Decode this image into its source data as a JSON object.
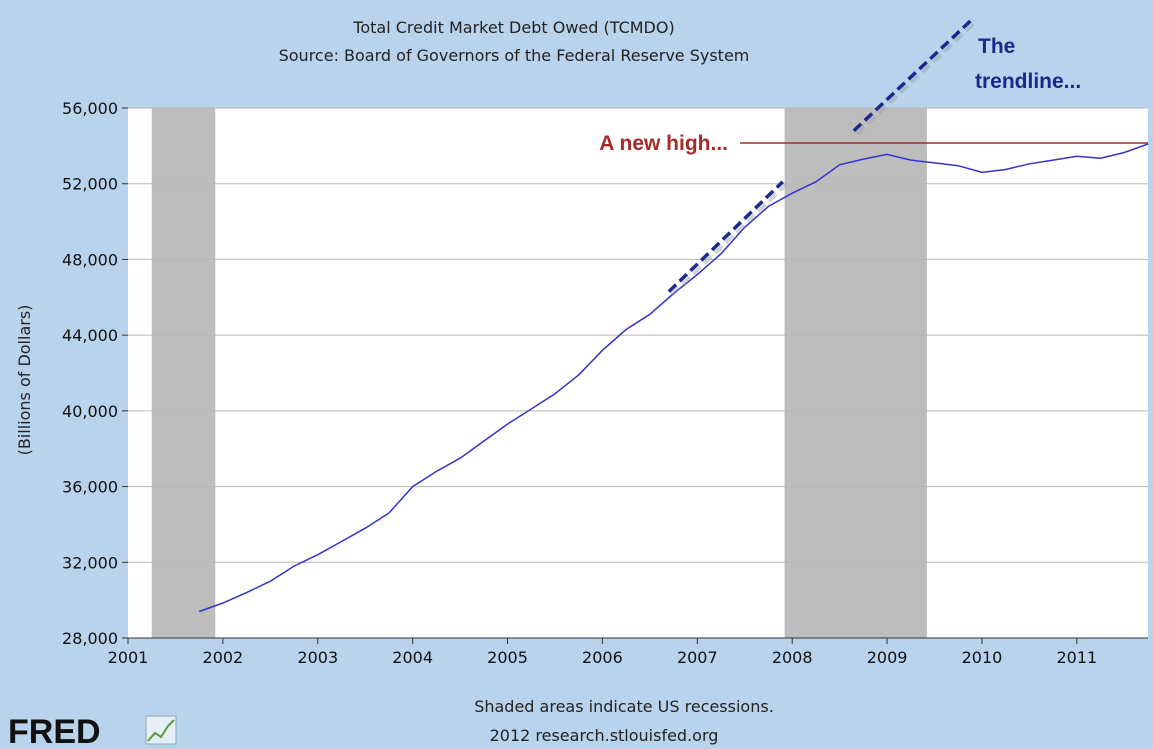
{
  "chart_data": {
    "type": "line",
    "title": "Total Credit Market Debt Owed (TCMDO)",
    "subtitle": "Source: Board of Governors of the Federal Reserve System",
    "ylabel": "(Billions of Dollars)",
    "xlabel": "",
    "xlim": [
      2001,
      2011.75
    ],
    "ylim": [
      28000,
      56000
    ],
    "x_ticks": [
      "2001",
      "2002",
      "2003",
      "2004",
      "2005",
      "2006",
      "2007",
      "2008",
      "2009",
      "2010",
      "2011"
    ],
    "y_ticks": [
      "28,000",
      "32,000",
      "36,000",
      "40,000",
      "44,000",
      "48,000",
      "52,000",
      "56,000"
    ],
    "grid": true,
    "recessions": [
      {
        "start": 2001.25,
        "end": 2001.92
      },
      {
        "start": 2007.92,
        "end": 2009.42
      }
    ],
    "series": [
      {
        "color": "#3333cc",
        "x": [
          2001.75,
          2002.0,
          2002.25,
          2002.5,
          2002.75,
          2003.0,
          2003.25,
          2003.5,
          2003.75,
          2004.0,
          2004.25,
          2004.5,
          2004.75,
          2005.0,
          2005.25,
          2005.5,
          2005.75,
          2006.0,
          2006.25,
          2006.5,
          2006.75,
          2007.0,
          2007.25,
          2007.5,
          2007.75,
          2008.0,
          2008.25,
          2008.5,
          2008.75,
          2009.0,
          2009.25,
          2009.5,
          2009.75,
          2010.0,
          2010.25,
          2010.5,
          2010.75,
          2011.0,
          2011.25,
          2011.5,
          2011.75
        ],
        "y": [
          29400,
          29850,
          30400,
          31000,
          31800,
          32400,
          33100,
          33800,
          34600,
          36000,
          36800,
          37500,
          38400,
          39300,
          40100,
          40900,
          41900,
          43200,
          44300,
          45100,
          46200,
          47200,
          48300,
          49700,
          50800,
          51500,
          52100,
          53000,
          53300,
          53550,
          53250,
          53100,
          52950,
          52600,
          52750,
          53050,
          53250,
          53450,
          53350,
          53650,
          54100
        ]
      }
    ],
    "annotations": {
      "new_high_text": "A new high...",
      "new_high_value": 54150,
      "new_high_x_start": 2007.45,
      "trendline_text_1": "The",
      "trendline_text_2": "trendline...",
      "trend_segment_1": {
        "x1": 2006.7,
        "y1": 46300,
        "x2": 2007.9,
        "y2": 52100
      },
      "trend_segment_2": {
        "x1": 2008.65,
        "y1": 54800,
        "x2": 2009.9,
        "y2": 60700
      }
    },
    "colors": {
      "background": "#b9d3ec",
      "plot_bg": "#ffffff",
      "recession": "#bdbdbd",
      "line": "#3333cc",
      "new_high": "#a52a2a",
      "trendline": "#1a2a8c"
    }
  },
  "footer": {
    "note": "Shaded areas indicate US recessions.",
    "credit": "2012 research.stlouisfed.org"
  },
  "logo": {
    "text": "FRED"
  }
}
